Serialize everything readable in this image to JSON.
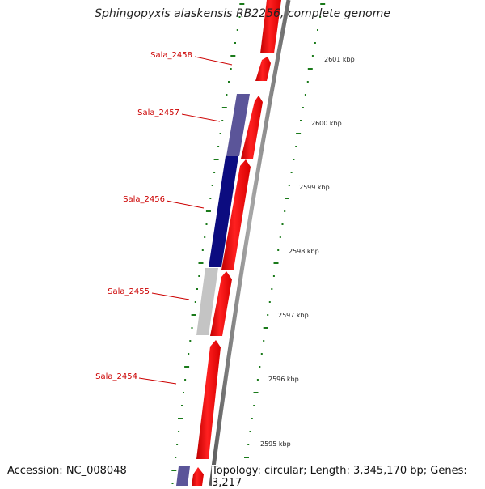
{
  "title": "Sphingopyxis alaskensis RB2256, complete genome",
  "footer": {
    "accession": "Accession: NC_008048",
    "topology": "Topology: circular; Length: 3,345,170 bp; Genes: 3,217"
  },
  "colors": {
    "forward_gene": "#ff1a1a",
    "reverse_gene_light": "#5b5599",
    "reverse_gene_dark": "#0c0c80",
    "reverse_gene_grey": "#c4c4c4",
    "backbone": "#7a7a7a",
    "tick": "#1a7a1a",
    "label": "#cc0000"
  },
  "gene_labels": [
    "Sala_2458",
    "Sala_2457",
    "Sala_2456",
    "Sala_2455",
    "Sala_2454"
  ],
  "kbp_labels": [
    "2601 kbp",
    "2600 kbp",
    "2599 kbp",
    "2598 kbp",
    "2597 kbp",
    "2596 kbp",
    "2595 kbp"
  ]
}
